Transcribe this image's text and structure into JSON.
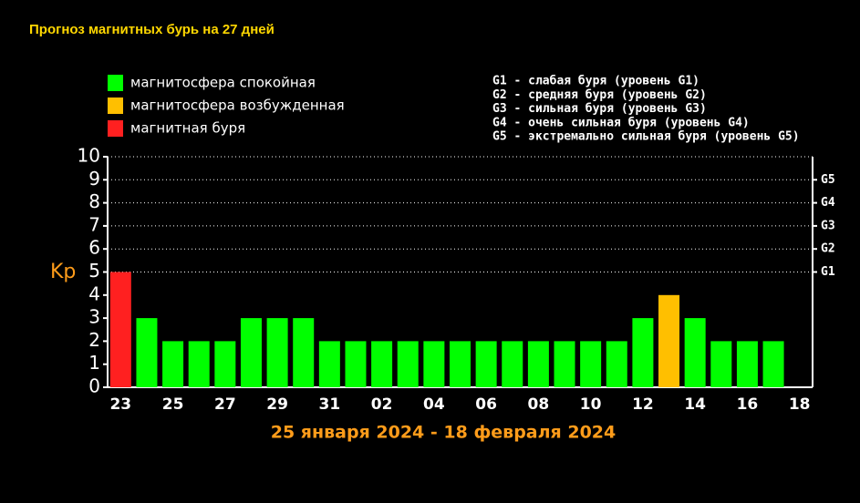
{
  "chart_data": {
    "type": "bar",
    "title": "Прогноз магнитных бурь на 27 дней",
    "x_label": "25 января 2024 - 18 февраля 2024",
    "y_label": "Kp",
    "categories": [
      "23",
      null,
      "25",
      null,
      "27",
      null,
      "29",
      null,
      "31",
      null,
      "02",
      null,
      "04",
      null,
      "06",
      null,
      "08",
      null,
      "10",
      null,
      "12",
      null,
      "14",
      null,
      "16",
      null,
      "18"
    ],
    "values": [
      5,
      3,
      2,
      2,
      2,
      3,
      3,
      3,
      2,
      2,
      2,
      2,
      2,
      2,
      2,
      2,
      2,
      2,
      2,
      2,
      3,
      4,
      3,
      2,
      2,
      2,
      null
    ],
    "colors": [
      "#ff2020",
      "#00ff00",
      "#00ff00",
      "#00ff00",
      "#00ff00",
      "#00ff00",
      "#00ff00",
      "#00ff00",
      "#00ff00",
      "#00ff00",
      "#00ff00",
      "#00ff00",
      "#00ff00",
      "#00ff00",
      "#00ff00",
      "#00ff00",
      "#00ff00",
      "#00ff00",
      "#00ff00",
      "#00ff00",
      "#00ff00",
      "#ffbf00",
      "#00ff00",
      "#00ff00",
      "#00ff00",
      "#00ff00",
      "#00ff00"
    ],
    "ylim": [
      0,
      10
    ],
    "yticks": [
      0,
      1,
      2,
      3,
      4,
      5,
      6,
      7,
      8,
      9,
      10
    ],
    "y2lim": [
      0,
      10
    ],
    "y2ticks": [
      {
        "value": 5,
        "label": "G1"
      },
      {
        "value": 6,
        "label": "G2"
      },
      {
        "value": 7,
        "label": "G3"
      },
      {
        "value": 8,
        "label": "G4"
      },
      {
        "value": 9,
        "label": "G5"
      }
    ],
    "legend": [
      {
        "label": "магнитосфера спокойная",
        "color": "#00ff00"
      },
      {
        "label": "магнитосфера возбужденная",
        "color": "#ffbf00"
      },
      {
        "label": "магнитная буря",
        "color": "#ff2020"
      }
    ],
    "scale_notes": [
      "G1 - слабая буря (уровень G1)",
      "G2 - средняя буря (уровень G2)",
      "G3 - сильная буря (уровень G3)",
      "G4 - очень сильная буря (уровень G4)",
      "G5 - экстремально сильная буря (уровень G5)"
    ]
  }
}
